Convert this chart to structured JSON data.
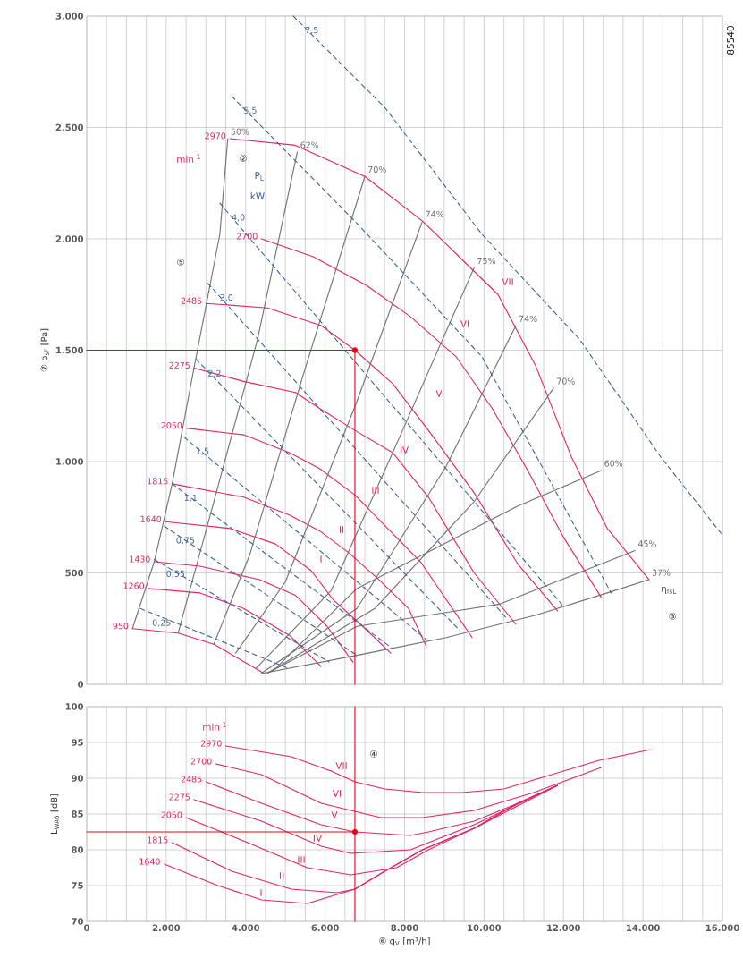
{
  "chart_data": [
    {
      "type": "line",
      "ylabel": "⑦ p$_{sF}$ [Pa]",
      "xlim": [
        0,
        16000
      ],
      "ylim": [
        0,
        3000
      ],
      "grid": true,
      "tick_labels": "y",
      "xticks": [
        {
          "value": 0,
          "label": null
        },
        {
          "value": 500,
          "label": null
        },
        {
          "value": 1000,
          "label": null
        },
        {
          "value": 1500,
          "label": null
        },
        {
          "value": 2000,
          "label": null
        },
        {
          "value": 2500,
          "label": null
        },
        {
          "value": 3000,
          "label": null
        },
        {
          "value": 3500,
          "label": null
        },
        {
          "value": 4000,
          "label": null
        },
        {
          "value": 4500,
          "label": null
        },
        {
          "value": 5000,
          "label": null
        },
        {
          "value": 5500,
          "label": null
        },
        {
          "value": 6000,
          "label": null
        },
        {
          "value": 6500,
          "label": null
        },
        {
          "value": 7000,
          "label": null
        },
        {
          "value": 7500,
          "label": null
        },
        {
          "value": 8000,
          "label": null
        },
        {
          "value": 8500,
          "label": null
        },
        {
          "value": 9000,
          "label": null
        },
        {
          "value": 9500,
          "label": null
        },
        {
          "value": 10000,
          "label": null
        },
        {
          "value": 10500,
          "label": null
        },
        {
          "value": 11000,
          "label": null
        },
        {
          "value": 11500,
          "label": null
        },
        {
          "value": 12000,
          "label": null
        },
        {
          "value": 12500,
          "label": null
        },
        {
          "value": 13000,
          "label": null
        },
        {
          "value": 13500,
          "label": null
        },
        {
          "value": 14000,
          "label": null
        },
        {
          "value": 14500,
          "label": null
        },
        {
          "value": 15000,
          "label": null
        },
        {
          "value": 15500,
          "label": null
        },
        {
          "value": 16000,
          "label": null
        }
      ],
      "yticks": [
        0,
        500,
        {
          "value": 1000,
          "label": "1.000"
        },
        {
          "value": 1500,
          "label": "1.500"
        },
        {
          "value": 2000,
          "label": "2.000"
        },
        {
          "value": 2500,
          "label": "2.500"
        },
        {
          "value": 3000,
          "label": "3.000"
        }
      ],
      "series": [
        {
          "name": "2970",
          "type": "line",
          "color": "#e2236a",
          "x": [
            3600,
            5250,
            7000,
            8450,
            10350,
            11300,
            12200,
            13100,
            14150
          ],
          "values": [
            2450,
            2420,
            2280,
            2080,
            1750,
            1430,
            1020,
            700,
            470
          ]
        },
        {
          "name": "2700",
          "type": "line",
          "color": "#e2236a",
          "x": [
            4400,
            5700,
            7050,
            8150,
            9300,
            10200,
            11100,
            12000,
            12950
          ],
          "values": [
            2000,
            1920,
            1790,
            1650,
            1470,
            1240,
            960,
            660,
            390
          ]
        },
        {
          "name": "2485",
          "type": "line",
          "color": "#e2236a",
          "x": [
            3000,
            4550,
            5900,
            6750,
            7700,
            8600,
            9750,
            10850,
            11850
          ],
          "values": [
            1710,
            1690,
            1610,
            1500,
            1350,
            1140,
            860,
            540,
            330
          ]
        },
        {
          "name": "2275",
          "type": "line",
          "color": "#e2236a",
          "x": [
            2700,
            3950,
            5250,
            5850,
            6750,
            7700,
            8600,
            9750,
            10800
          ],
          "values": [
            1420,
            1360,
            1310,
            1240,
            1140,
            1040,
            840,
            500,
            270
          ]
        },
        {
          "name": "2050",
          "type": "line",
          "color": "#e2236a",
          "x": [
            2500,
            3950,
            5100,
            5850,
            6750,
            7350,
            8400,
            9700
          ],
          "values": [
            1150,
            1120,
            1040,
            970,
            850,
            740,
            550,
            210
          ]
        },
        {
          "name": "1815",
          "type": "line",
          "color": "#e2236a",
          "x": [
            2150,
            3950,
            5100,
            5850,
            6600,
            7350,
            8100,
            8550
          ],
          "values": [
            900,
            840,
            760,
            690,
            590,
            470,
            340,
            170
          ]
        },
        {
          "name": "1640",
          "type": "line",
          "color": "#e2236a",
          "x": [
            1980,
            3600,
            4750,
            5650,
            6200,
            6950,
            7650
          ],
          "values": [
            730,
            700,
            630,
            510,
            380,
            260,
            140
          ]
        },
        {
          "name": "1430",
          "type": "line",
          "color": "#e2236a",
          "x": [
            1700,
            2850,
            4350,
            5250,
            6050,
            6700
          ],
          "values": [
            550,
            530,
            470,
            400,
            260,
            100
          ]
        },
        {
          "name": "1260",
          "type": "line",
          "color": "#e2236a",
          "x": [
            1550,
            2850,
            3950,
            5100,
            5900
          ],
          "values": [
            430,
            410,
            340,
            220,
            80
          ]
        },
        {
          "name": "950",
          "type": "line",
          "color": "#e2236a",
          "x": [
            1150,
            2300,
            3200,
            4450
          ],
          "values": [
            250,
            230,
            180,
            50
          ]
        },
        {
          "name": "50%",
          "type": "line",
          "color": "#6f6f6f",
          "x": [
            3550,
            3350,
            2700,
            2150,
            1700,
            1150
          ],
          "values": [
            2450,
            2020,
            1420,
            900,
            550,
            250
          ]
        },
        {
          "name": "62%",
          "type": "line",
          "color": "#6f6f6f",
          "x": [
            5300,
            4300,
            3200,
            2300
          ],
          "values": [
            2390,
            1550,
            820,
            230
          ]
        },
        {
          "name": "70%",
          "type": "line",
          "color": "#6f6f6f",
          "x": [
            7000,
            5450,
            4100,
            3200
          ],
          "values": [
            2280,
            1390,
            580,
            180
          ]
        },
        {
          "name": "74%",
          "type": "line",
          "color": "#6f6f6f",
          "x": [
            8450,
            6800,
            5000,
            3750
          ],
          "values": [
            2080,
            1270,
            460,
            140
          ]
        },
        {
          "name": "75%",
          "type": "line",
          "color": "#6f6f6f",
          "x": [
            9750,
            7950,
            6150,
            4250
          ],
          "values": [
            1870,
            1140,
            420,
            70
          ]
        },
        {
          "name": "74%",
          "type": "line",
          "color": "#6f6f6f",
          "x": [
            10800,
            9050,
            6800,
            4400
          ],
          "values": [
            1610,
            980,
            340,
            50
          ]
        },
        {
          "name": "70%",
          "type": "line",
          "color": "#6f6f6f",
          "x": [
            11750,
            9750,
            7250,
            4550
          ],
          "values": [
            1330,
            820,
            340,
            50
          ]
        },
        {
          "name": "60%",
          "type": "line",
          "color": "#6f6f6f",
          "x": [
            12950,
            10850,
            6800,
            4800
          ],
          "values": [
            960,
            800,
            430,
            80
          ]
        },
        {
          "name": "45%",
          "type": "line",
          "color": "#6f6f6f",
          "x": [
            13800,
            10400,
            6800,
            4550
          ],
          "values": [
            600,
            360,
            260,
            50
          ]
        },
        {
          "name": "37%",
          "type": "line",
          "color": "#6f6f6f",
          "x": [
            14150,
            13100,
            11300,
            9050,
            6800,
            4450
          ],
          "values": [
            470,
            410,
            310,
            210,
            130,
            50
          ]
        },
        {
          "name": "0,25",
          "type": "line",
          "line_style": "dashed",
          "color": "#3f6490",
          "x": [
            1350,
            5100
          ],
          "values": [
            340,
            70
          ]
        },
        {
          "name": "0,55",
          "type": "line",
          "line_style": "dashed",
          "color": "#3f6490",
          "x": [
            1700,
            6100
          ],
          "values": [
            560,
            100
          ]
        },
        {
          "name": "0,75",
          "type": "line",
          "line_style": "dashed",
          "color": "#3f6490",
          "x": [
            1950,
            6800
          ],
          "values": [
            710,
            130
          ]
        },
        {
          "name": "1,1",
          "type": "line",
          "line_style": "dashed",
          "color": "#3f6490",
          "x": [
            2150,
            7700
          ],
          "values": [
            900,
            160
          ]
        },
        {
          "name": "1,5",
          "type": "line",
          "line_style": "dashed",
          "color": "#3f6490",
          "x": [
            2450,
            8550
          ],
          "values": [
            1110,
            200
          ]
        },
        {
          "name": "2,2",
          "type": "line",
          "line_style": "dashed",
          "color": "#3f6490",
          "x": [
            2750,
            9400
          ],
          "values": [
            1460,
            240
          ]
        },
        {
          "name": "3,0",
          "type": "line",
          "line_style": "dashed",
          "color": "#3f6490",
          "x": [
            3050,
            10600
          ],
          "values": [
            1800,
            290
          ]
        },
        {
          "name": "4,0",
          "type": "line",
          "line_style": "dashed",
          "color": "#3f6490",
          "x": [
            3350,
            12000
          ],
          "values": [
            2160,
            350
          ]
        },
        {
          "name": "5,5",
          "type": "line",
          "line_style": "dashed",
          "color": "#3f6490",
          "x": [
            3650,
            6800,
            9950,
            13200
          ],
          "values": [
            2640,
            2070,
            1470,
            410
          ]
        },
        {
          "name": "7,5",
          "type": "line",
          "line_style": "dashed",
          "color": "#3f6490",
          "x": [
            5200,
            7500,
            9950,
            12400,
            14450,
            16000
          ],
          "values": [
            3000,
            2590,
            2020,
            1550,
            1020,
            670
          ]
        },
        {
          "type": "line",
          "color": "#e30613",
          "x": [
            0,
            6750
          ],
          "values": [
            1500,
            1500
          ]
        },
        {
          "type": "line",
          "color": "#e30613",
          "x": [
            6750,
            6750
          ],
          "values": [
            0,
            1500
          ]
        },
        {
          "type": "scatter",
          "marker": "circle",
          "color": "#e30613",
          "x": [
            6750
          ],
          "values": [
            1500
          ]
        }
      ],
      "annotations": [
        "②",
        "P$_{L}$",
        "kW",
        "min$^{-1}$",
        "⑤",
        "η$_{fsL}$",
        "③",
        "85540",
        "VII",
        "VI",
        "V",
        "IV",
        "III",
        "II",
        "I"
      ]
    },
    {
      "type": "line",
      "xlabel": "⑥ q$_{V}$ [m³/h]",
      "ylabel": "L$_{WA6}$ [dB]",
      "xlim": [
        0,
        16000
      ],
      "ylim": [
        70,
        100
      ],
      "grid": true,
      "xticks": [
        0,
        {
          "value": 500,
          "label": null
        },
        {
          "value": 1000,
          "label": null
        },
        {
          "value": 1500,
          "label": null
        },
        {
          "value": 2000,
          "label": "2.000"
        },
        {
          "value": 2500,
          "label": null
        },
        {
          "value": 3000,
          "label": null
        },
        {
          "value": 3500,
          "label": null
        },
        {
          "value": 4000,
          "label": "4.000"
        },
        {
          "value": 4500,
          "label": null
        },
        {
          "value": 5000,
          "label": null
        },
        {
          "value": 5500,
          "label": null
        },
        {
          "value": 6000,
          "label": "6.000"
        },
        {
          "value": 6500,
          "label": null
        },
        {
          "value": 7000,
          "label": null
        },
        {
          "value": 7500,
          "label": null
        },
        {
          "value": 8000,
          "label": "8.000"
        },
        {
          "value": 8500,
          "label": null
        },
        {
          "value": 9000,
          "label": null
        },
        {
          "value": 9500,
          "label": null
        },
        {
          "value": 10000,
          "label": "10.000"
        },
        {
          "value": 10500,
          "label": null
        },
        {
          "value": 11000,
          "label": null
        },
        {
          "value": 11500,
          "label": null
        },
        {
          "value": 12000,
          "label": "12.000"
        },
        {
          "value": 12500,
          "label": null
        },
        {
          "value": 13000,
          "label": null
        },
        {
          "value": 13500,
          "label": null
        },
        {
          "value": 14000,
          "label": "14.000"
        },
        {
          "value": 14500,
          "label": null
        },
        {
          "value": 15000,
          "label": null
        },
        {
          "value": 15500,
          "label": null
        },
        {
          "value": 16000,
          "label": "16.000"
        }
      ],
      "yticks": [
        70,
        75,
        80,
        85,
        90,
        95,
        100
      ],
      "series": [
        {
          "name": "2970",
          "type": "line",
          "color": "#e2236a",
          "x": [
            3500,
            5150,
            6150,
            6750,
            7500,
            8450,
            9450,
            10500,
            11400,
            12900,
            14200
          ],
          "values": [
            94.5,
            93,
            91,
            89.5,
            88.5,
            88,
            88,
            88.5,
            90,
            92.5,
            94
          ]
        },
        {
          "name": "2700",
          "type": "line",
          "color": "#e2236a",
          "x": [
            3250,
            4400,
            5900,
            6650,
            7400,
            8450,
            9750,
            11250,
            12950
          ],
          "values": [
            92,
            90.5,
            86.5,
            85.5,
            84.5,
            84.5,
            85.5,
            88,
            91.5
          ]
        },
        {
          "name": "2485",
          "type": "line",
          "color": "#e2236a",
          "x": [
            3000,
            4400,
            5900,
            6750,
            8150,
            8600,
            9750,
            10850,
            11850
          ],
          "values": [
            89.5,
            86.5,
            83.5,
            82.5,
            82,
            82.5,
            84,
            86.5,
            89
          ]
        },
        {
          "name": "2275",
          "type": "line",
          "color": "#e2236a",
          "x": [
            2700,
            4400,
            5900,
            6650,
            8150,
            8600,
            9750,
            11850
          ],
          "values": [
            87,
            84,
            80.5,
            79.5,
            80,
            81,
            83.5,
            89
          ]
        },
        {
          "name": "2050",
          "type": "line",
          "color": "#e2236a",
          "x": [
            2500,
            4050,
            5550,
            6650,
            7800,
            8600,
            9750,
            11850
          ],
          "values": [
            84.5,
            81,
            77.5,
            76.5,
            77.5,
            80,
            83,
            89
          ]
        },
        {
          "name": "1815",
          "type": "line",
          "color": "#e2236a",
          "x": [
            2150,
            3650,
            5150,
            6300,
            6750,
            7500,
            8450,
            9750,
            10850,
            11850
          ],
          "values": [
            81,
            77,
            74.5,
            74,
            74.5,
            77,
            80,
            83,
            86.5,
            89
          ]
        },
        {
          "name": "1640",
          "type": "line",
          "color": "#e2236a",
          "x": [
            1950,
            3300,
            4400,
            5550,
            6150,
            6750,
            7500,
            8450,
            9750,
            10850,
            11850
          ],
          "values": [
            78,
            75,
            73,
            72.5,
            73.5,
            74.5,
            77,
            80,
            83,
            86.5,
            89
          ]
        },
        {
          "type": "line",
          "color": "#e30613",
          "x": [
            0,
            6750
          ],
          "values": [
            82.5,
            82.5
          ]
        },
        {
          "type": "line",
          "color": "#e30613",
          "x": [
            6750,
            6750
          ],
          "values": [
            70,
            100
          ]
        },
        {
          "type": "scatter",
          "marker": "circle",
          "color": "#e30613",
          "x": [
            6750
          ],
          "values": [
            82.5
          ]
        }
      ],
      "annotations": [
        "min$^{-1}$",
        "④",
        "VII",
        "VI",
        "V",
        "IV",
        "III",
        "II",
        "I"
      ]
    }
  ]
}
